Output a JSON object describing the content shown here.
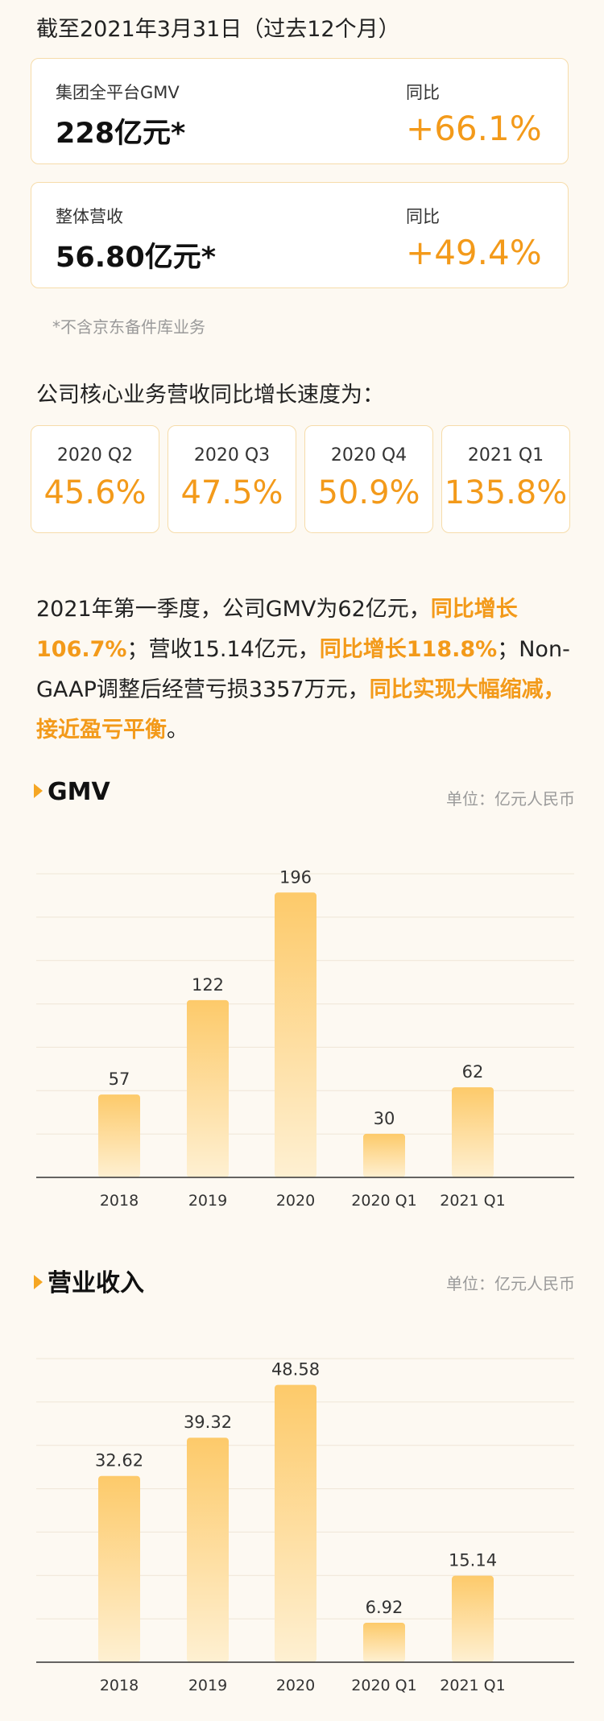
{
  "header": {
    "period": "截至2021年3月31日（过去12个月）"
  },
  "metrics": [
    {
      "label": "集团全平台GMV",
      "value": "228亿元*",
      "yoy_label": "同比",
      "yoy": "+66.1%"
    },
    {
      "label": "整体营收",
      "value": "56.80亿元*",
      "yoy_label": "同比",
      "yoy": "+49.4%"
    }
  ],
  "footnote": "*不含京东备件库业务",
  "core_growth": {
    "title": "公司核心业务营收同比增长速度为：",
    "items": [
      {
        "quarter": "2020 Q2",
        "value": "45.6%"
      },
      {
        "quarter": "2020 Q3",
        "value": "47.5%"
      },
      {
        "quarter": "2020 Q4",
        "value": "50.9%"
      },
      {
        "quarter": "2021 Q1",
        "value": "135.8%"
      }
    ]
  },
  "summary": {
    "p1": "2021年第一季度，公司GMV为62亿元，",
    "h1": "同比增长106.7%",
    "p2": "；营收15.14亿元，",
    "h2": "同比增长118.8%",
    "p3": "；Non-GAAP调整后经营亏损3357万元，",
    "h3": "同比实现大幅缩减，接近盈亏平衡",
    "p4": "。"
  },
  "colors": {
    "accent": "#f39a1a",
    "bar_top": "#fdca6a",
    "bar_bottom": "#fef0d2"
  },
  "chart_data": [
    {
      "type": "bar",
      "title": "GMV",
      "unit": "单位：亿元人民币",
      "categories": [
        "2018",
        "2019",
        "2020",
        "2020 Q1",
        "2021 Q1"
      ],
      "values": [
        57,
        122,
        196,
        30,
        62
      ],
      "value_labels": [
        "57",
        "122",
        "196",
        "30",
        "62"
      ],
      "ylim": [
        0,
        220
      ],
      "grid": true
    },
    {
      "type": "bar",
      "title": "营业收入",
      "unit": "单位：亿元人民币",
      "categories": [
        "2018",
        "2019",
        "2020",
        "2020 Q1",
        "2021 Q1"
      ],
      "values": [
        32.62,
        39.32,
        48.58,
        6.92,
        15.14
      ],
      "value_labels": [
        "32.62",
        "39.32",
        "48.58",
        "6.92",
        "15.14"
      ],
      "ylim": [
        0,
        56
      ],
      "grid": true
    }
  ]
}
